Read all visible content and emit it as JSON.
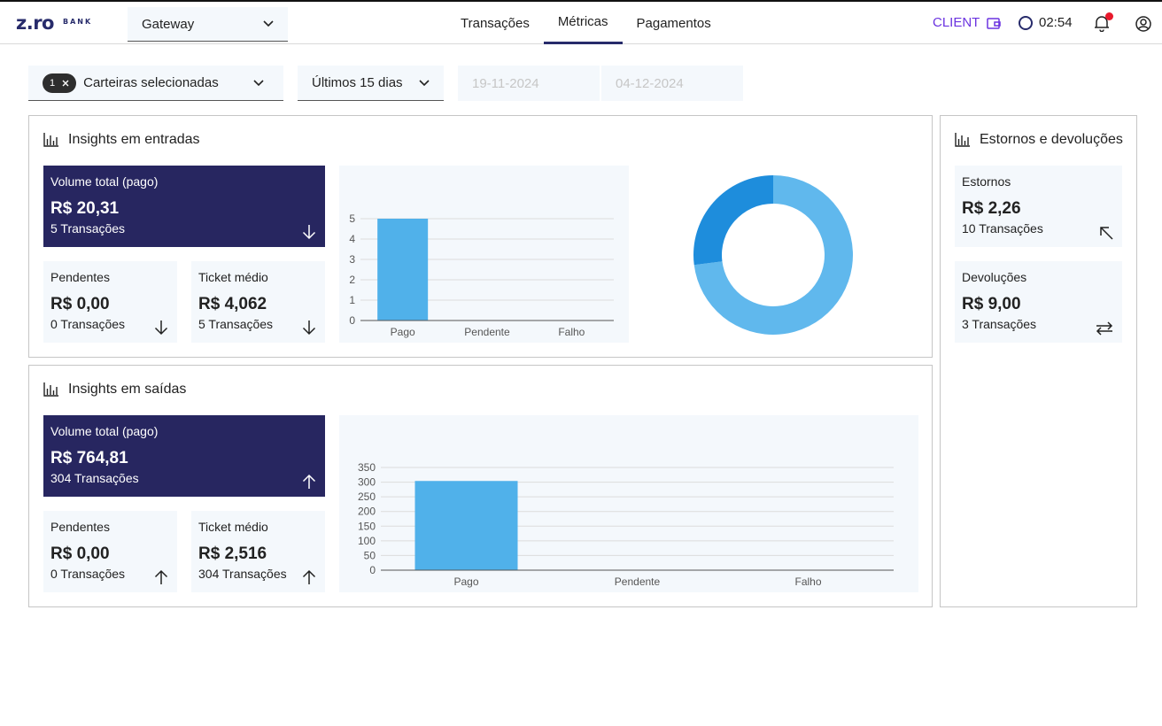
{
  "header": {
    "logo_text": "z.ro",
    "logo_sub": "BANK",
    "gateway_label": "Gateway",
    "tabs": [
      {
        "label": "Transações",
        "active": false
      },
      {
        "label": "Métricas",
        "active": true
      },
      {
        "label": "Pagamentos",
        "active": false
      }
    ],
    "client_label": "CLIENT",
    "timer": "02:54"
  },
  "filters": {
    "wallet_count": "1",
    "wallet_label": "Carteiras selecionadas",
    "period_label": "Últimos 15 dias",
    "date_start": "19-11-2024",
    "date_end": "04-12-2024"
  },
  "entradas": {
    "title": "Insights em entradas",
    "total": {
      "label": "Volume total (pago)",
      "value": "R$ 20,31",
      "sub": "5 Transações"
    },
    "pendentes": {
      "label": "Pendentes",
      "value": "R$ 0,00",
      "sub": "0 Transações"
    },
    "ticket": {
      "label": "Ticket médio",
      "value": "R$ 4,062",
      "sub": "5 Transações"
    }
  },
  "saidas": {
    "title": "Insights em saídas",
    "total": {
      "label": "Volume total (pago)",
      "value": "R$ 764,81",
      "sub": "304 Transações"
    },
    "pendentes": {
      "label": "Pendentes",
      "value": "R$ 0,00",
      "sub": "0 Transações"
    },
    "ticket": {
      "label": "Ticket médio",
      "value": "R$ 2,516",
      "sub": "304 Transações"
    }
  },
  "estornos_panel": {
    "title": "Estornos e devoluções",
    "estornos": {
      "label": "Estornos",
      "value": "R$ 2,26",
      "sub": "10 Transações"
    },
    "devolucoes": {
      "label": "Devoluções",
      "value": "R$ 9,00",
      "sub": "3 Transações"
    }
  },
  "colors": {
    "brand": "#272660",
    "accent_purple": "#6b33e0",
    "bar": "#50b1ea",
    "donut_dark": "#1e8ddc",
    "donut_light": "#60b8ed"
  },
  "chart_data": [
    {
      "type": "bar",
      "categories": [
        "Pago",
        "Pendente",
        "Falho"
      ],
      "values": [
        5,
        0,
        0
      ],
      "title": "",
      "xlabel": "",
      "ylabel": "",
      "ylim": [
        0,
        5
      ],
      "yticks": [
        0,
        1,
        2,
        3,
        4,
        5
      ],
      "grid": true
    },
    {
      "type": "pie",
      "labels": [
        "",
        ""
      ],
      "values": [
        73,
        27
      ],
      "donut": true
    },
    {
      "type": "bar",
      "categories": [
        "Pago",
        "Pendente",
        "Falho"
      ],
      "values": [
        304,
        0,
        0
      ],
      "title": "",
      "xlabel": "",
      "ylabel": "",
      "ylim": [
        0,
        350
      ],
      "yticks": [
        0,
        50,
        100,
        150,
        200,
        250,
        300,
        350
      ],
      "grid": true
    }
  ]
}
